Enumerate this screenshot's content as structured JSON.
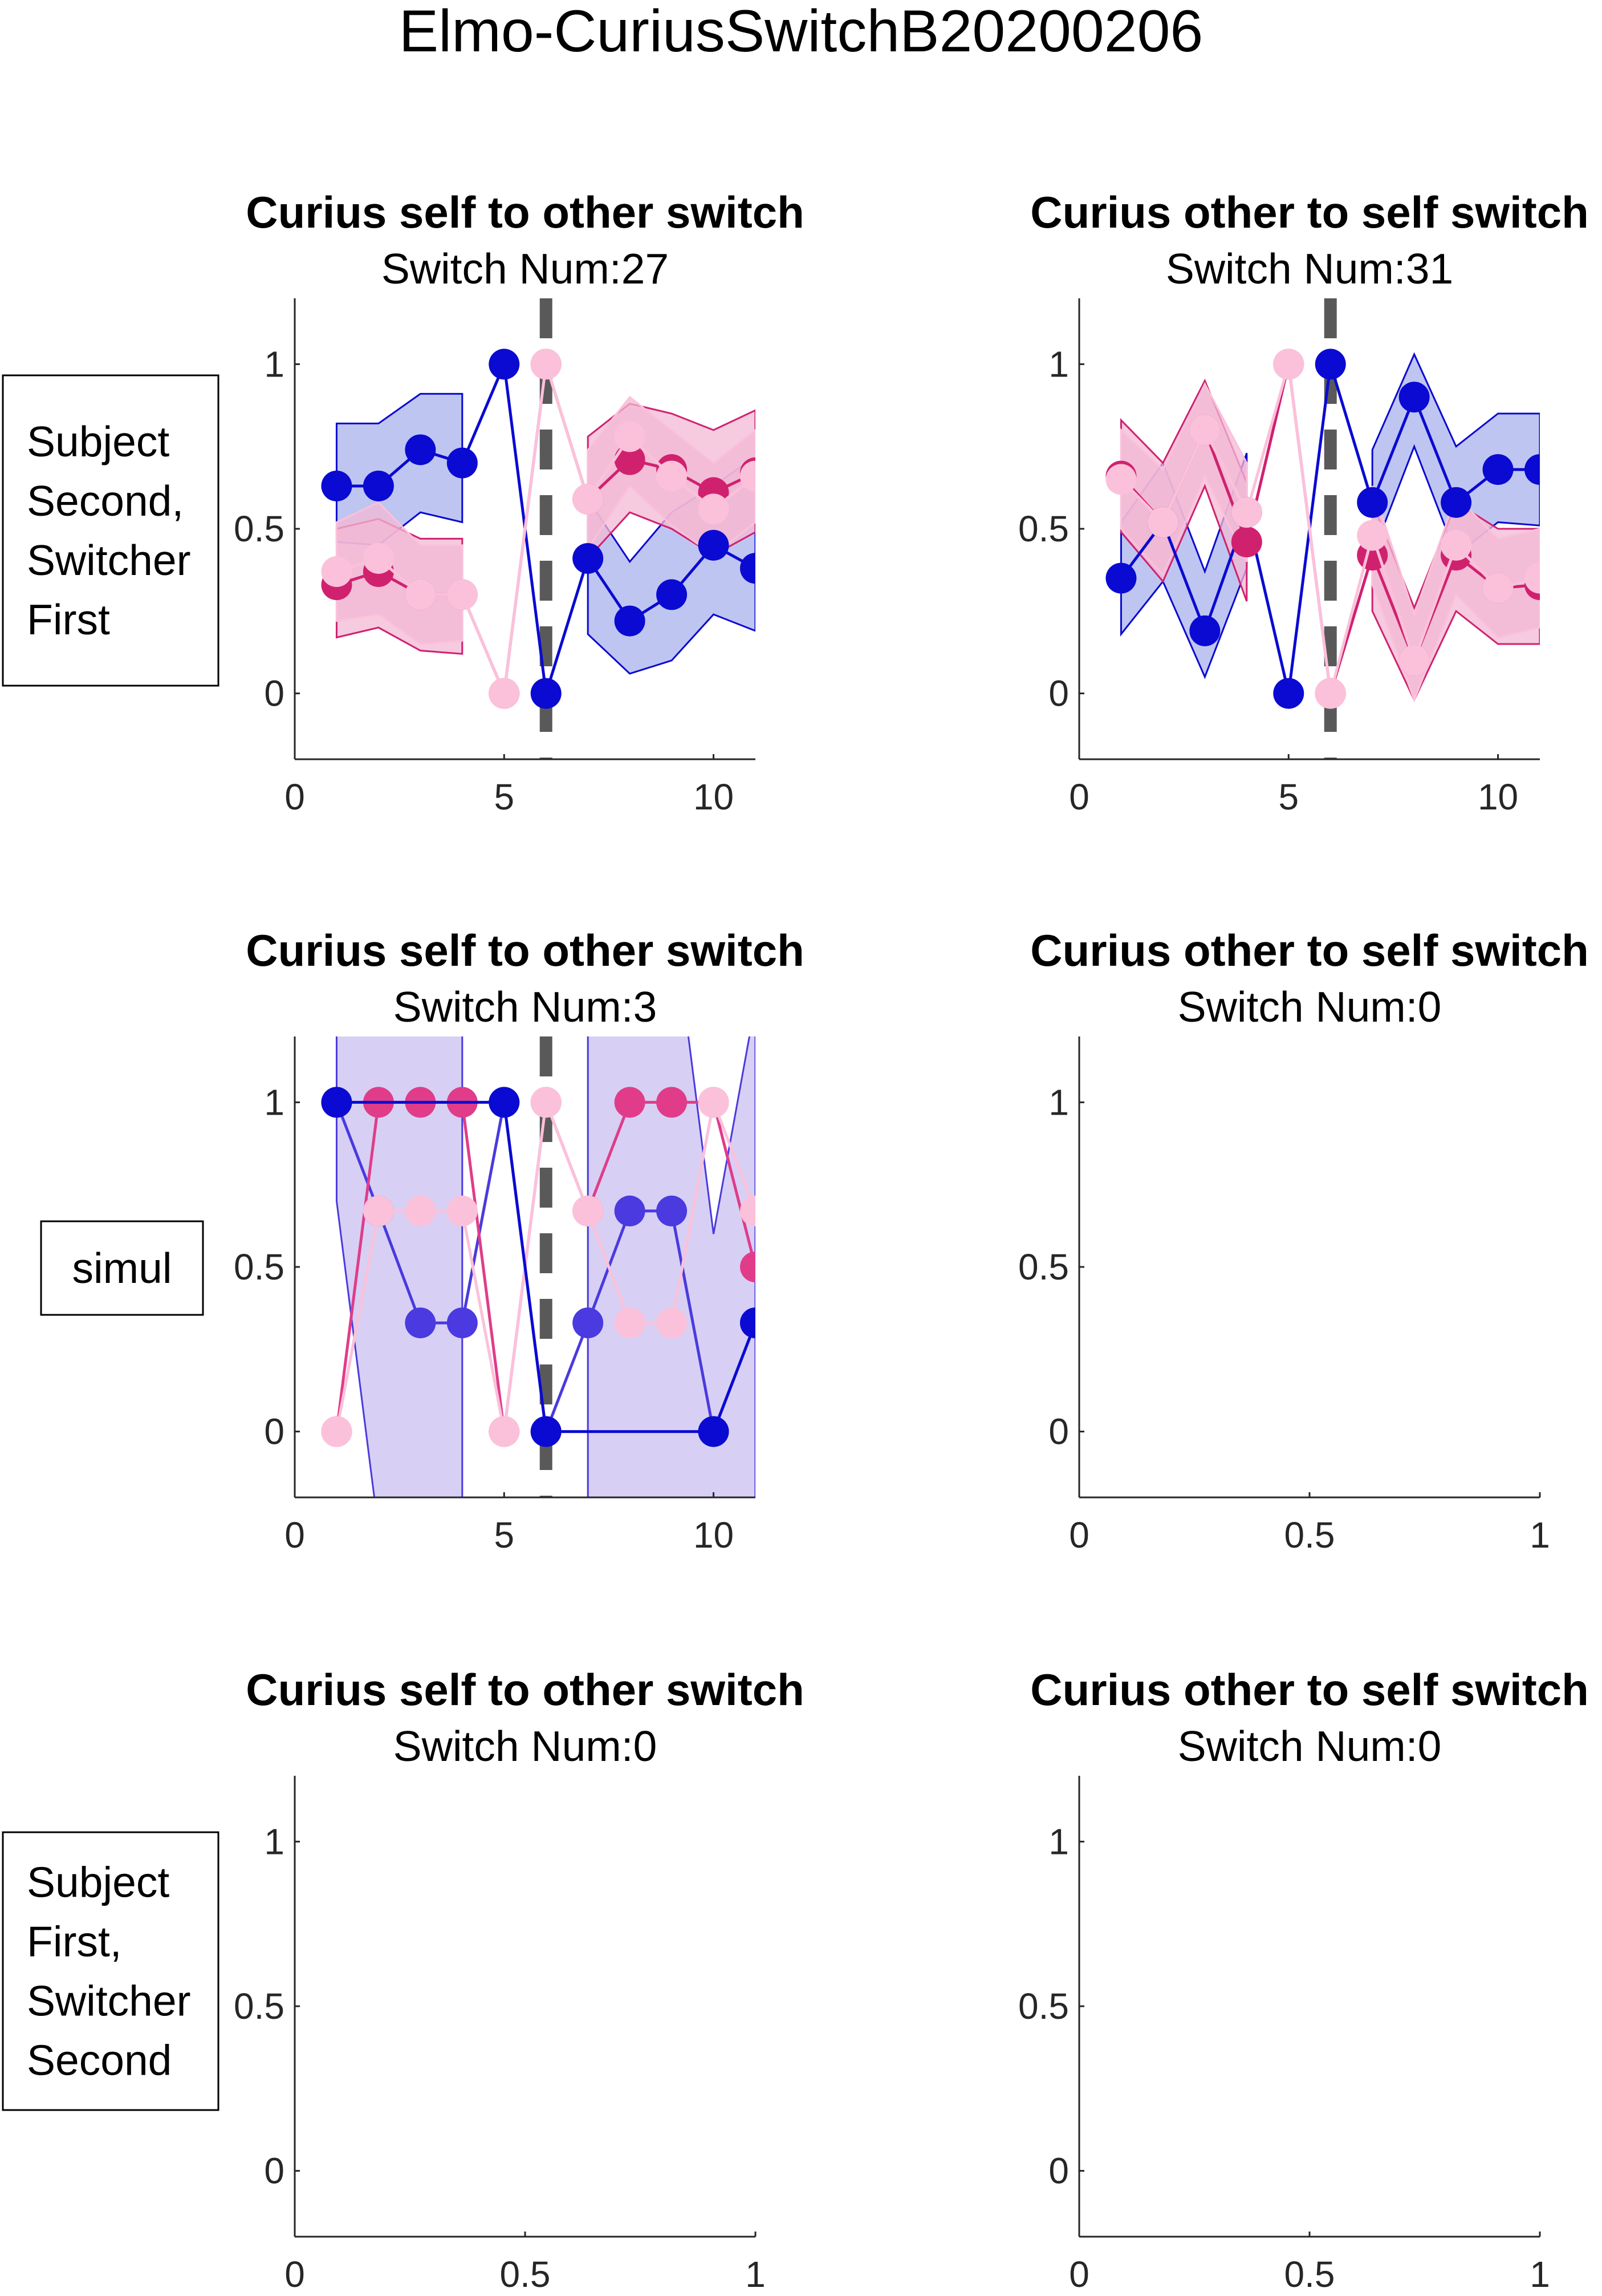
{
  "figure_title": "Elmo-CuriusSwitchB20200206",
  "row_labels": [
    [
      "Subject",
      "Second,",
      "Switcher",
      "First"
    ],
    [
      "simul"
    ],
    [
      "Subject",
      "First,",
      "Switcher",
      "Second"
    ]
  ],
  "colors": {
    "blue": "#0a0ad2",
    "purple": "#4a3adf",
    "magenta": "#d0216f",
    "deep_pink": "#e03c8a",
    "light_pink": "#fbc1da",
    "blue_band": "#aab2ec",
    "pink_band": "#f3b8d4",
    "purple_band": "#c9c0f0",
    "switch_line": "#595959"
  },
  "chart_data": [
    {
      "type": "line",
      "title": "Curius self to other switch",
      "subtitle": "Switch Num:27",
      "xlim": [
        0,
        11
      ],
      "ylim": [
        -0.2,
        1.2
      ],
      "xticks": [
        0,
        5,
        10
      ],
      "yticks": [
        0,
        0.5,
        1
      ],
      "switch_x": 6,
      "grid": false,
      "series": [
        {
          "color": "blue",
          "x": [
            1,
            2,
            3,
            4,
            5,
            6,
            7,
            8,
            9,
            10,
            11
          ],
          "values": [
            0.63,
            0.63,
            0.74,
            0.7,
            1.0,
            0.0,
            0.41,
            0.22,
            0.3,
            0.45,
            0.38
          ],
          "band_upper": [
            0.82,
            0.82,
            0.91,
            0.91,
            null,
            null,
            0.59,
            0.4,
            0.55,
            0.63,
            0.72
          ],
          "band_lower": [
            0.46,
            0.45,
            0.55,
            0.52,
            null,
            null,
            0.18,
            0.06,
            0.1,
            0.24,
            0.19
          ]
        },
        {
          "color": "magenta",
          "x": [
            1,
            2,
            3,
            4,
            5,
            6,
            7,
            8,
            9,
            10,
            11
          ],
          "values": [
            0.33,
            0.37,
            0.3,
            0.3,
            0.0,
            1.0,
            0.59,
            0.71,
            0.68,
            0.61,
            0.67
          ],
          "band_upper": [
            0.5,
            0.53,
            0.47,
            0.47,
            null,
            null,
            0.78,
            0.88,
            0.85,
            0.8,
            0.86
          ],
          "band_lower": [
            0.17,
            0.2,
            0.13,
            0.12,
            null,
            null,
            0.41,
            0.55,
            0.5,
            0.42,
            0.49
          ]
        },
        {
          "color": "light_pink",
          "x": [
            1,
            2,
            3,
            4,
            5,
            6,
            7,
            8,
            9,
            10,
            11
          ],
          "values": [
            0.37,
            0.41,
            0.3,
            0.3,
            0.0,
            1.0,
            0.59,
            0.78,
            0.66,
            0.56,
            0.66
          ],
          "band_upper": [
            0.52,
            0.58,
            0.45,
            0.45,
            null,
            null,
            0.74,
            0.9,
            0.8,
            0.7,
            0.8
          ],
          "band_lower": [
            0.22,
            0.24,
            0.15,
            0.16,
            null,
            null,
            0.44,
            0.63,
            0.51,
            0.42,
            0.52
          ]
        }
      ]
    },
    {
      "type": "line",
      "title": "Curius other to self switch",
      "subtitle": "Switch Num:31",
      "xlim": [
        0,
        11
      ],
      "ylim": [
        -0.2,
        1.2
      ],
      "xticks": [
        0,
        5,
        10
      ],
      "yticks": [
        0,
        0.5,
        1
      ],
      "switch_x": 6,
      "grid": false,
      "series": [
        {
          "color": "blue",
          "x": [
            1,
            2,
            3,
            4,
            5,
            6,
            7,
            8,
            9,
            10,
            11
          ],
          "values": [
            0.35,
            0.52,
            0.19,
            0.55,
            0.0,
            1.0,
            0.58,
            0.9,
            0.58,
            0.68,
            0.68
          ],
          "band_upper": [
            0.52,
            0.7,
            0.37,
            0.73,
            null,
            null,
            0.74,
            1.03,
            0.75,
            0.85,
            0.85
          ],
          "band_lower": [
            0.18,
            0.34,
            0.05,
            0.38,
            null,
            null,
            0.42,
            0.75,
            0.42,
            0.52,
            0.51
          ]
        },
        {
          "color": "magenta",
          "x": [
            1,
            2,
            3,
            4,
            5,
            6,
            7,
            8,
            9,
            10,
            11
          ],
          "values": [
            0.66,
            0.52,
            0.8,
            0.46,
            1.0,
            0.0,
            0.42,
            0.1,
            0.42,
            0.32,
            0.33
          ],
          "band_upper": [
            0.83,
            0.7,
            0.95,
            0.64,
            null,
            null,
            0.58,
            0.26,
            0.58,
            0.5,
            0.5
          ],
          "band_lower": [
            0.49,
            0.34,
            0.63,
            0.28,
            null,
            null,
            0.25,
            -0.02,
            0.25,
            0.15,
            0.15
          ]
        },
        {
          "color": "light_pink",
          "x": [
            1,
            2,
            3,
            4,
            5,
            6,
            7,
            8,
            9,
            10,
            11
          ],
          "values": [
            0.65,
            0.52,
            0.8,
            0.55,
            1.0,
            0.0,
            0.48,
            0.1,
            0.45,
            0.32,
            0.35
          ],
          "band_upper": [
            0.8,
            0.68,
            0.94,
            0.7,
            null,
            null,
            0.63,
            0.24,
            0.6,
            0.47,
            0.5
          ],
          "band_lower": [
            0.5,
            0.36,
            0.66,
            0.4,
            null,
            null,
            0.33,
            -0.02,
            0.3,
            0.17,
            0.2
          ]
        }
      ]
    },
    {
      "type": "line",
      "title": "Curius self to other switch",
      "subtitle": "Switch Num:3",
      "xlim": [
        0,
        11
      ],
      "ylim": [
        -0.2,
        1.2
      ],
      "xticks": [
        0,
        5,
        10
      ],
      "yticks": [
        0,
        0.5,
        1
      ],
      "switch_x": 6,
      "grid": false,
      "series": [
        {
          "color": "purple",
          "x": [
            1,
            2,
            3,
            4,
            5,
            6,
            7,
            8,
            9,
            10,
            11
          ],
          "values": [
            1.0,
            0.67,
            0.33,
            0.33,
            1.0,
            0.0,
            0.33,
            0.67,
            0.67,
            0.0,
            0.33
          ],
          "band_upper": [
            1.3,
            1.6,
            1.3,
            1.3,
            null,
            null,
            1.3,
            1.6,
            1.6,
            0.6,
            1.3
          ],
          "band_lower": [
            0.7,
            -0.3,
            -0.6,
            -0.6,
            null,
            null,
            -0.6,
            -0.3,
            -0.3,
            -0.6,
            -0.6
          ]
        },
        {
          "color": "deep_pink",
          "x": [
            1,
            2,
            3,
            4,
            5,
            6,
            7,
            8,
            9,
            10,
            11
          ],
          "values": [
            0.0,
            1.0,
            1.0,
            1.0,
            0.0,
            1.0,
            0.67,
            1.0,
            1.0,
            1.0,
            0.5
          ]
        },
        {
          "color": "light_pink",
          "x": [
            1,
            2,
            3,
            4,
            5,
            6,
            7,
            8,
            9,
            10,
            11
          ],
          "values": [
            0.0,
            0.67,
            0.67,
            0.67,
            0.0,
            1.0,
            0.67,
            0.33,
            0.33,
            1.0,
            0.67
          ]
        },
        {
          "color": "blue",
          "x": [
            1,
            5,
            6,
            10,
            11
          ],
          "values": [
            1.0,
            1.0,
            0.0,
            0.0,
            0.33
          ]
        }
      ]
    },
    {
      "type": "line",
      "title": "Curius other to self switch",
      "subtitle": "Switch Num:0",
      "xlim": [
        0,
        1
      ],
      "ylim": [
        -0.2,
        1.2
      ],
      "xticks": [
        0,
        0.5,
        1
      ],
      "yticks": [
        0,
        0.5,
        1
      ],
      "grid": false,
      "series": []
    },
    {
      "type": "line",
      "title": "Curius self to other switch",
      "subtitle": "Switch Num:0",
      "xlim": [
        0,
        1
      ],
      "ylim": [
        -0.2,
        1.2
      ],
      "xticks": [
        0,
        0.5,
        1
      ],
      "yticks": [
        0,
        0.5,
        1
      ],
      "grid": false,
      "series": []
    },
    {
      "type": "line",
      "title": "Curius other to self switch",
      "subtitle": "Switch Num:0",
      "xlim": [
        0,
        1
      ],
      "ylim": [
        -0.2,
        1.2
      ],
      "xticks": [
        0,
        0.5,
        1
      ],
      "yticks": [
        0,
        0.5,
        1
      ],
      "grid": false,
      "series": []
    }
  ]
}
